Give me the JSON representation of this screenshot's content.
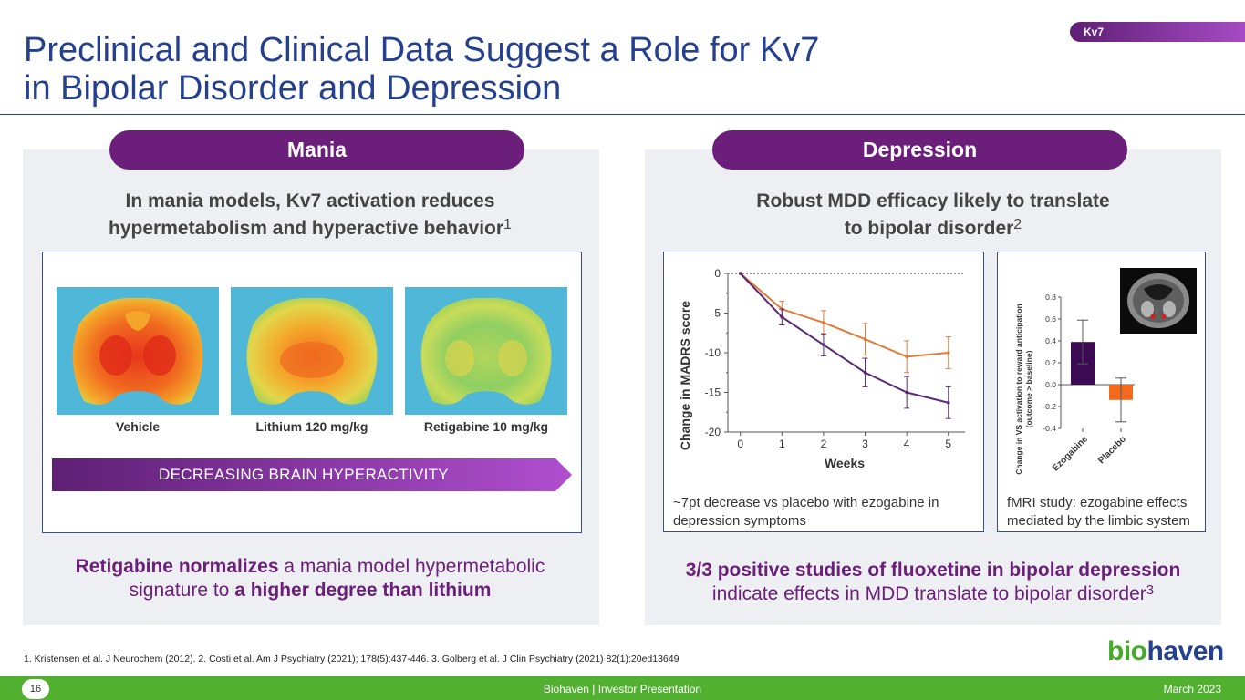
{
  "header": {
    "title_line1": "Preclinical and Clinical Data Suggest a Role for Kv7",
    "title_line2": "in Bipolar Disorder and Depression",
    "tag": "Kv7"
  },
  "mania": {
    "pill": "Mania",
    "subtitle_line1": "In mania models, Kv7 activation reduces",
    "subtitle_line2": "hypermetabolism and hyperactive behavior",
    "subtitle_sup": "1",
    "brains": [
      {
        "label": "Vehicle"
      },
      {
        "label": "Lithium 120 mg/kg"
      },
      {
        "label": "Retigabine 10 mg/kg"
      }
    ],
    "arrow_label": "DECREASING BRAIN HYPERACTIVITY",
    "bottom_bold1": "Retigabine normalizes",
    "bottom_text1": " a mania model hypermetabolic",
    "bottom_text2": "signature to ",
    "bottom_bold2": "a higher degree than lithium"
  },
  "depression": {
    "pill": "Depression",
    "subtitle_line1": "Robust MDD efficacy likely to translate",
    "subtitle_line2": "to bipolar disorder",
    "subtitle_sup": "2",
    "chart_caption": "~7pt decrease vs placebo with ezogabine in depression symptoms",
    "fmri_caption": "fMRI study: ezogabine effects mediated by the limbic system",
    "bottom_bold": "3/3 positive studies of fluoxetine in bipolar depression",
    "bottom_text": "indicate effects in MDD translate to bipolar disorder",
    "bottom_sup": "3"
  },
  "chart_data": [
    {
      "type": "line",
      "title": "",
      "xlabel": "Weeks",
      "ylabel": "Change in MADRS score",
      "x": [
        0,
        1,
        2,
        3,
        4,
        5
      ],
      "xlim": [
        -0.3,
        5.4
      ],
      "ylim": [
        -20,
        0
      ],
      "yticks": [
        0,
        -5,
        -10,
        -15,
        -20
      ],
      "series": [
        {
          "name": "Placebo",
          "color": "#e07b39",
          "values": [
            0,
            -4.5,
            -6.2,
            -8.3,
            -10.5,
            -10.0
          ],
          "errors": [
            0,
            1.0,
            1.5,
            2.0,
            2.0,
            2.0
          ]
        },
        {
          "name": "Ezogabine",
          "color": "#5b2a74",
          "values": [
            0,
            -5.5,
            -9.0,
            -12.5,
            -15.0,
            -16.3
          ],
          "errors": [
            0,
            1.0,
            1.4,
            1.8,
            2.0,
            2.0
          ]
        }
      ]
    },
    {
      "type": "bar",
      "title": "",
      "xlabel": "",
      "ylabel": "Change in VS activation to reward anticipation (outcome > baseline)",
      "categories": [
        "Ezogabine",
        "Placebo"
      ],
      "values": [
        0.39,
        -0.14
      ],
      "errors": [
        0.2,
        0.2
      ],
      "colors": [
        "#3b0a52",
        "#f26b1d"
      ],
      "ylim": [
        -0.4,
        0.8
      ],
      "yticks": [
        "0.8",
        "0.6",
        "0.4",
        "0.2",
        "0.0",
        "-0.2",
        "-0.4"
      ]
    }
  ],
  "footnote": "1. Kristensen et al. J Neurochem (2012). 2. Costi et al. Am J Psychiatry (2021); 178(5):437-446. 3. Golberg et al. J Clin Psychiatry (2021) 82(1):20ed13649",
  "logo": {
    "part1": "bio",
    "part2": "haven"
  },
  "footer": {
    "page": "16",
    "center": "Biohaven  |  Investor Presentation",
    "right": "March 2023"
  }
}
